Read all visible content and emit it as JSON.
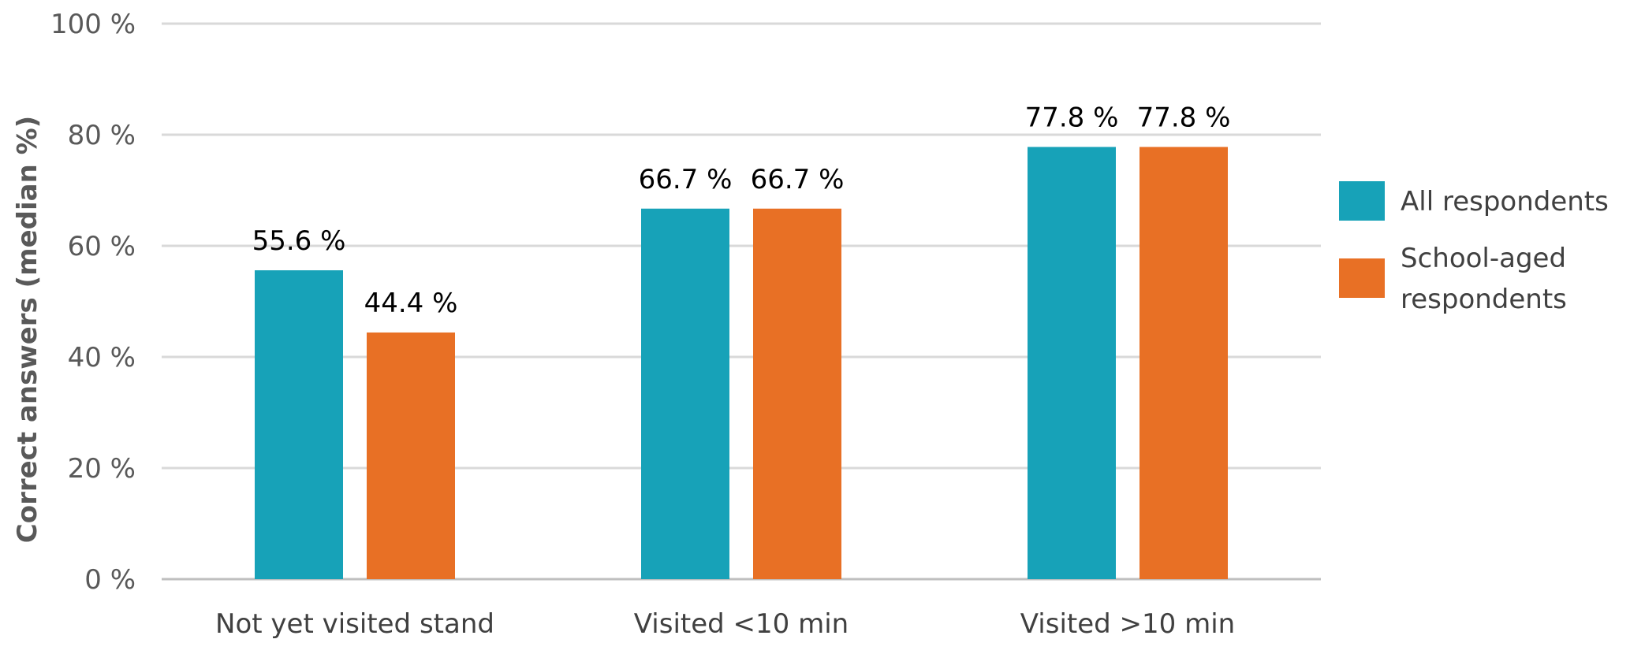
{
  "chart_data": {
    "type": "bar",
    "title": "",
    "xlabel": "",
    "ylabel": "Correct answers (median %)",
    "categories": [
      "Not yet visited stand",
      "Visited <10 min",
      "Visited >10 min"
    ],
    "series": [
      {
        "name": "All respondents",
        "values": [
          55.6,
          66.7,
          77.8
        ],
        "labels": [
          "55.6 %",
          "66.7 %",
          "77.8 %"
        ],
        "color": "#17a2b8"
      },
      {
        "name": "School-aged respondents",
        "values": [
          44.4,
          66.7,
          77.8
        ],
        "labels": [
          "44.4 %",
          "66.7 %",
          "77.8 %"
        ],
        "color": "#e87025"
      }
    ],
    "ylim": [
      0,
      100
    ],
    "yticks": [
      0,
      20,
      40,
      60,
      80,
      100
    ],
    "ytick_labels": [
      "0 %",
      "20 %",
      "40 %",
      "60 %",
      "80 %",
      "100 %"
    ],
    "grid": true,
    "legend": {
      "position": "right",
      "entries": [
        {
          "lines": [
            "All respondents"
          ]
        },
        {
          "lines": [
            "School-aged",
            "respondents"
          ]
        }
      ]
    }
  }
}
